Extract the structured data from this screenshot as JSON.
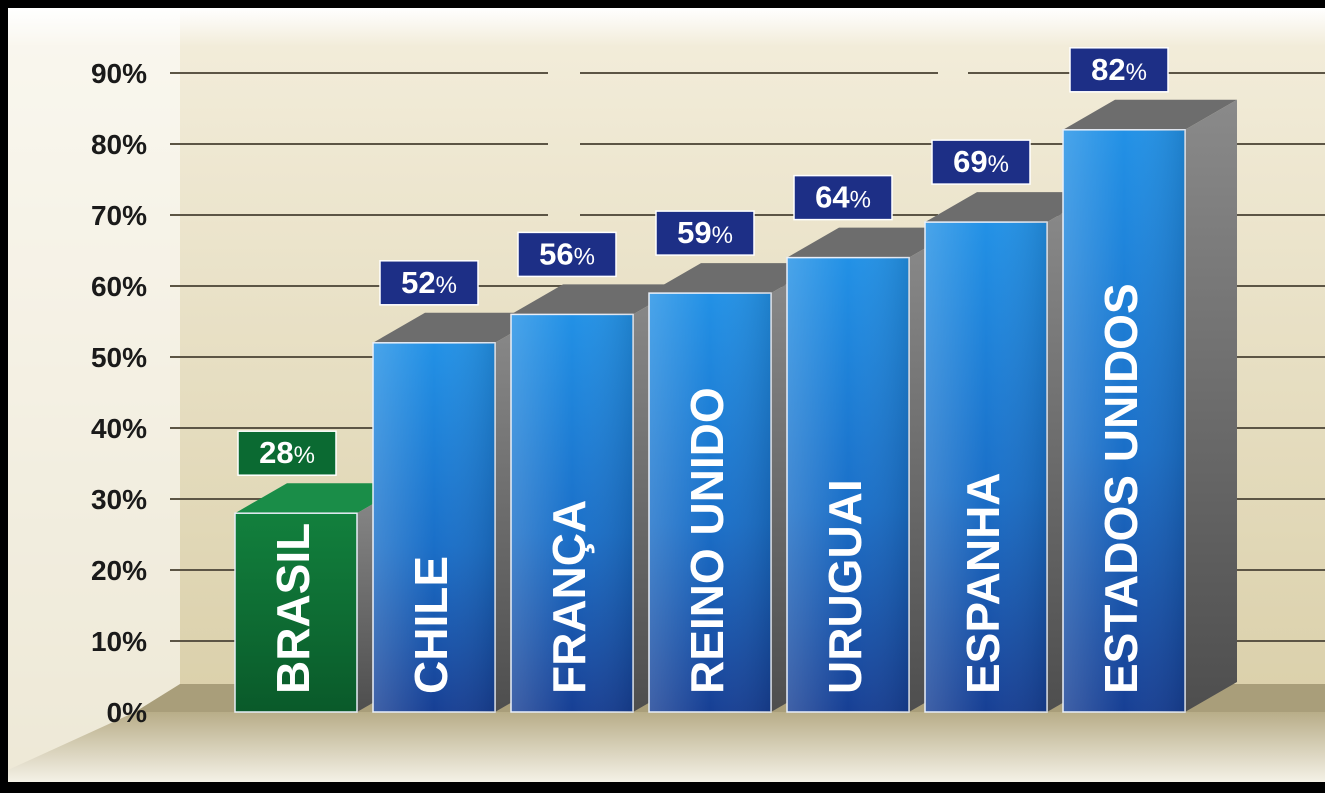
{
  "chart_data": {
    "type": "bar",
    "title": "",
    "xlabel": "",
    "ylabel": "",
    "ylim": [
      0,
      90
    ],
    "y_ticks": [
      0,
      10,
      20,
      30,
      40,
      50,
      60,
      70,
      80,
      90
    ],
    "y_tick_suffix": "%",
    "grid": true,
    "categories": [
      "BRASIL",
      "CHILE",
      "FRANÇA",
      "REINO UNIDO",
      "URUGUAI",
      "ESPANHA",
      "ESTADOS UNIDOS"
    ],
    "values": [
      28,
      52,
      56,
      59,
      64,
      69,
      82
    ],
    "value_labels": [
      "28",
      "52",
      "56",
      "59",
      "64",
      "69",
      "82"
    ],
    "value_suffix": "%",
    "highlight_category": "BRASIL",
    "colors": {
      "highlight_bar": "#0e7a3a",
      "highlight_label": "#0b6a32",
      "bar_top": "#1f86dd",
      "bar_bottom": "#16489e",
      "value_label": "#1d2f86",
      "background_top": "#ffffff",
      "background_bottom": "#d9cfa8",
      "grid": "#5c5545"
    }
  }
}
